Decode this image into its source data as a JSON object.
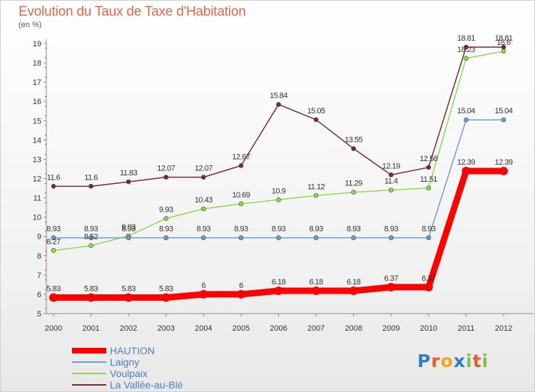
{
  "title": "Evolution du Taux de Taxe d'Habitation",
  "unit_label": "(en %)",
  "logo": {
    "letters": [
      {
        "ch": "P",
        "color": "#2f7fc8"
      },
      {
        "ch": "r",
        "color": "#e85c2a"
      },
      {
        "ch": "o",
        "color": "#f2a81d"
      },
      {
        "ch": "x",
        "color": "#2f7fc8"
      },
      {
        "ch": "i",
        "color": "#7cc24a"
      },
      {
        "ch": "t",
        "color": "#e85c2a"
      },
      {
        "ch": "i",
        "color": "#7cc24a"
      }
    ]
  },
  "chart_data": {
    "type": "line",
    "x": [
      "2000",
      "2001",
      "2002",
      "2003",
      "2004",
      "2005",
      "2006",
      "2007",
      "2008",
      "2009",
      "2010",
      "2011",
      "2012"
    ],
    "ylim": [
      5,
      19
    ],
    "yticks": [
      5,
      6,
      7,
      8,
      9,
      10,
      11,
      12,
      13,
      14,
      15,
      16,
      17,
      18,
      19
    ],
    "grid": false,
    "legend_position": "bottom-left",
    "series": [
      {
        "name": "HAUTION",
        "color": "#ff0000",
        "width": 9,
        "marker_r": 0,
        "values": [
          5.83,
          5.83,
          5.83,
          5.83,
          6,
          6,
          6.18,
          6.18,
          6.18,
          6.37,
          6.37,
          12.39,
          12.39
        ],
        "labels": [
          "5.83",
          "5.83",
          "5.83",
          "5.83",
          "6",
          "6",
          "6.18",
          "6.18",
          "6.18",
          "6.37",
          "6.37",
          "12.39",
          "12.39"
        ]
      },
      {
        "name": "Laigny",
        "color": "#6d9fc9",
        "width": 1.5,
        "marker_r": 3,
        "values": [
          8.93,
          8.93,
          8.93,
          8.93,
          8.93,
          8.93,
          8.93,
          8.93,
          8.93,
          8.93,
          8.93,
          15.04,
          15.04
        ],
        "labels": [
          "8.93",
          "8.93",
          "8.93",
          "8.93",
          "8.93",
          "8.93",
          "8.93",
          "8.93",
          "8.93",
          "8.93",
          "8.93",
          "15.04",
          "15.04"
        ]
      },
      {
        "name": "Voulpaix",
        "color": "#8fd84f",
        "width": 1.5,
        "marker_r": 3,
        "values": [
          8.27,
          8.52,
          9.03,
          9.93,
          10.43,
          10.69,
          10.9,
          11.12,
          11.29,
          11.4,
          11.51,
          18.23,
          18.6
        ],
        "labels": [
          "8.27",
          "8.52",
          "9.03",
          "9.93",
          "10.43",
          "10.69",
          "10.9",
          "11.12",
          "11.29",
          "11.4",
          "11.51",
          "18.23",
          "18.6"
        ]
      },
      {
        "name": "La Vallée-au-Blé",
        "color": "#7a2a2a",
        "width": 1.5,
        "marker_r": 3,
        "values": [
          11.6,
          11.6,
          11.83,
          12.07,
          12.07,
          12.67,
          15.84,
          15.05,
          13.55,
          12.19,
          12.58,
          18.81,
          18.81
        ],
        "labels": [
          "11.6",
          "11.6",
          "11.83",
          "12.07",
          "12.07",
          "12.67",
          "15.84",
          "15.05",
          "13.55",
          "12.19",
          "12.58",
          "18.81",
          "18.81"
        ]
      }
    ]
  }
}
